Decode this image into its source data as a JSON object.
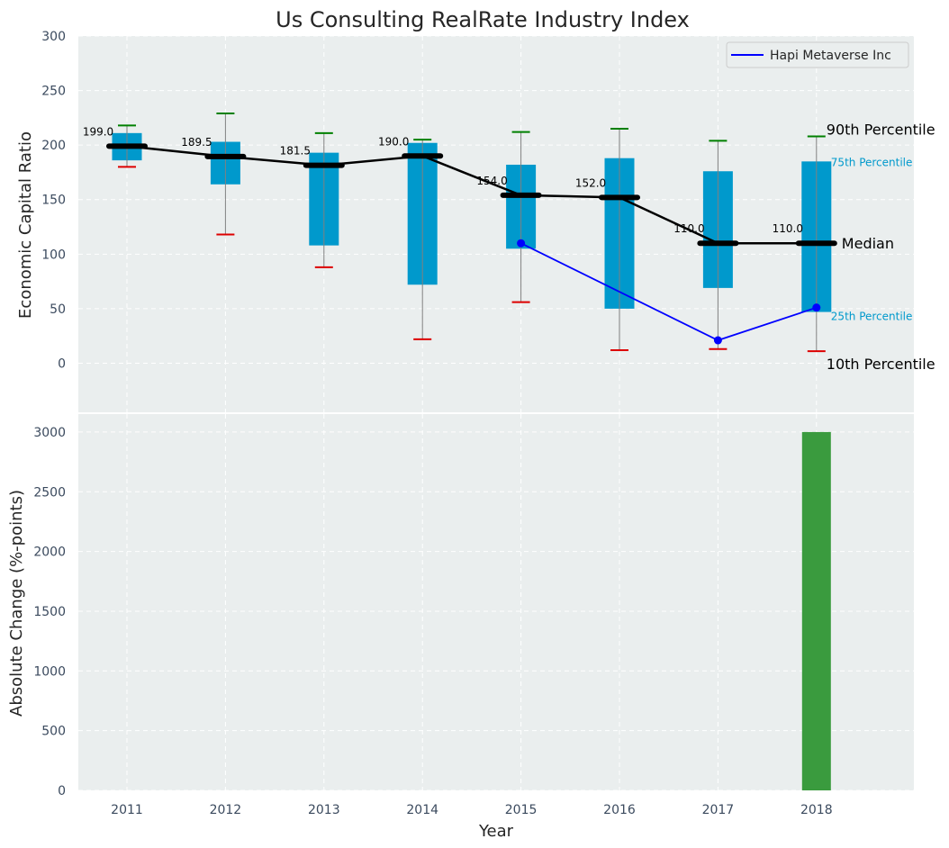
{
  "chart_data": [
    {
      "type": "box",
      "title": "Us Consulting RealRate Industry Index",
      "ylabel": "Economic Capital Ratio",
      "ylim": [
        -45,
        300
      ],
      "yticks": [
        0,
        50,
        100,
        150,
        200,
        250,
        300
      ],
      "categories": [
        "2011",
        "2012",
        "2013",
        "2014",
        "2015",
        "2016",
        "2017",
        "2018"
      ],
      "percentiles": {
        "p10": [
          180,
          118,
          88,
          22,
          56,
          12,
          13,
          11
        ],
        "p25": [
          186,
          164,
          108,
          72,
          105,
          50,
          69,
          47
        ],
        "median": [
          199.0,
          189.5,
          181.5,
          190.0,
          154.0,
          152.0,
          110.0,
          110.0
        ],
        "p75": [
          211,
          203,
          193,
          202,
          182,
          188,
          176,
          185
        ],
        "p90": [
          218,
          229,
          211,
          205,
          212,
          215,
          204,
          208
        ]
      },
      "median_labels": [
        "199.0",
        "189.5",
        "181.5",
        "190.0",
        "154.0",
        "152.0",
        "110.0",
        "110.0"
      ],
      "series": [
        {
          "name": "Hapi Metaverse Inc",
          "x": [
            "2015",
            "2017",
            "2018"
          ],
          "values": [
            110,
            21,
            51
          ],
          "color": "#0000ff"
        }
      ],
      "annotations": {
        "p90": "90th Percentile",
        "p75": "75th Percentile",
        "median": "Median",
        "p25": "25th Percentile",
        "p10": "10th Percentile"
      },
      "legend_position": "upper right",
      "grid": true,
      "colors": {
        "box": "#0099cc",
        "median": "#000000",
        "p90_cap": "#008000",
        "p10_cap": "#dd0000",
        "whisker": "#808080",
        "background": "#eaeeee"
      }
    },
    {
      "type": "bar",
      "ylabel": "Absolute Change (%-points)",
      "xlabel": "Year",
      "ylim": [
        0,
        3150
      ],
      "yticks": [
        0,
        500,
        1000,
        1500,
        2000,
        2500,
        3000
      ],
      "categories": [
        "2011",
        "2012",
        "2013",
        "2014",
        "2015",
        "2016",
        "2017",
        "2018"
      ],
      "values": [
        0,
        0,
        0,
        0,
        0,
        0,
        0,
        3000
      ],
      "color": "#3a9b3e"
    }
  ]
}
